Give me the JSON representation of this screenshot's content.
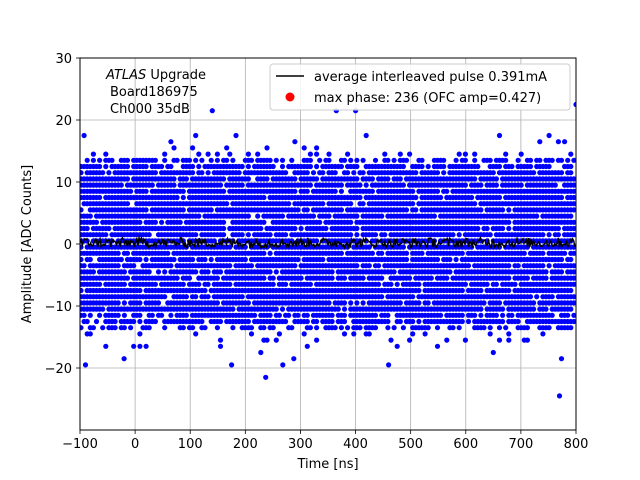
{
  "chart_data": {
    "type": "scatter",
    "xlabel": "Time [ns]",
    "ylabel": "Amplitude [ADC Counts]",
    "xlim": [
      -100,
      800
    ],
    "ylim": [
      -30,
      30
    ],
    "xticks": [
      -100,
      0,
      100,
      200,
      300,
      400,
      500,
      600,
      700,
      800
    ],
    "yticks": [
      -20,
      -10,
      0,
      10,
      20,
      30
    ],
    "xtick_labels": [
      "−100",
      "0",
      "100",
      "200",
      "300",
      "400",
      "500",
      "600",
      "700",
      "800"
    ],
    "ytick_labels": [
      "−20",
      "−10",
      "0",
      "10",
      "20",
      "30"
    ],
    "grid": true,
    "annotation": {
      "atlas": "ATLAS",
      "upgrade": " Upgrade",
      "board": "Board186975",
      "channel": "Ch000 35dB"
    },
    "legend": {
      "placement": "top-right",
      "entries": [
        {
          "label": "average interleaved pulse 0.391mA",
          "color": "#000000",
          "marker": "line"
        },
        {
          "label": "max phase: 236 (OFC amp=0.427)",
          "color": "#ff0000",
          "marker": "dot"
        }
      ]
    },
    "series": [
      {
        "color": "#0000ff",
        "kind": "samples",
        "x_range": [
          -100,
          800
        ],
        "levels": [
          -24.5,
          -21.5,
          -19.5,
          -18.5,
          -17.5,
          -16.5,
          -15.5,
          -14.5,
          -13.5,
          -12.5,
          -11.5,
          -10.5,
          -9.5,
          -8.5,
          -7.5,
          -6.5,
          -5.5,
          -4.5,
          -3.5,
          -2.5,
          -1.5,
          -0.5,
          0.5,
          1.5,
          2.5,
          3.5,
          4.5,
          5.5,
          6.5,
          7.5,
          8.5,
          9.5,
          10.5,
          11.5,
          12.5,
          13.5,
          14.5,
          15.5,
          16.5,
          17.5,
          18.5,
          19.5,
          20.5,
          21.5,
          22.5
        ],
        "outliers": [
          [
            -90,
            -19.5
          ],
          [
            -20,
            -18.5
          ],
          [
            175,
            -19.5
          ],
          [
            237,
            -21.5
          ],
          [
            268,
            -19.5
          ],
          [
            288,
            -18.5
          ],
          [
            460,
            -19.5
          ],
          [
            770,
            -24.5
          ],
          [
            400,
            21.5
          ],
          [
            800,
            22.5
          ],
          [
            365,
            21.5
          ],
          [
            140,
            21.5
          ]
        ]
      },
      {
        "color": "#000000",
        "kind": "average",
        "x_range": [
          -100,
          800
        ],
        "mean": 0.2,
        "amplitude": 0.8
      }
    ]
  }
}
